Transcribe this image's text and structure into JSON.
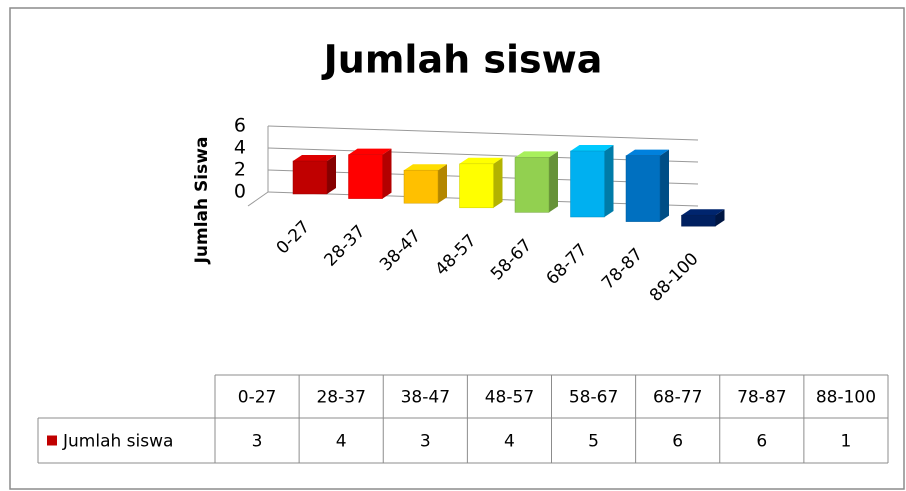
{
  "chart_data": {
    "type": "bar3d",
    "title": "Jumlah siswa",
    "y_label": "Jumlah Siswa",
    "categories": [
      "0-27",
      "28-37",
      "38-47",
      "48-57",
      "58-67",
      "68-77",
      "78-87",
      "88-100"
    ],
    "series": [
      {
        "name": "Jumlah siswa",
        "color": "#c00000",
        "values": [
          3,
          4,
          3,
          4,
          5,
          6,
          6,
          1
        ],
        "colors": [
          "#c00000",
          "#ff0000",
          "#ffc000",
          "#ffff00",
          "#92d050",
          "#00b0f0",
          "#0070c0",
          "#002060"
        ]
      }
    ],
    "ylim": [
      0,
      6
    ],
    "yticks": [
      0,
      2,
      4,
      6
    ],
    "grid": true,
    "data_table": true
  }
}
